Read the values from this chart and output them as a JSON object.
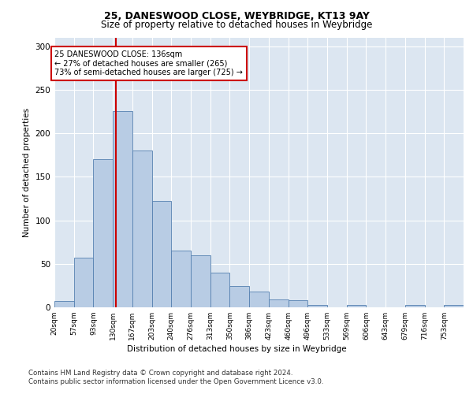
{
  "title1": "25, DANESWOOD CLOSE, WEYBRIDGE, KT13 9AY",
  "title2": "Size of property relative to detached houses in Weybridge",
  "xlabel": "Distribution of detached houses by size in Weybridge",
  "ylabel": "Number of detached properties",
  "bins": [
    "20sqm",
    "57sqm",
    "93sqm",
    "130sqm",
    "167sqm",
    "203sqm",
    "240sqm",
    "276sqm",
    "313sqm",
    "350sqm",
    "386sqm",
    "423sqm",
    "460sqm",
    "496sqm",
    "533sqm",
    "569sqm",
    "606sqm",
    "643sqm",
    "679sqm",
    "716sqm",
    "753sqm"
  ],
  "values": [
    7,
    57,
    170,
    225,
    180,
    122,
    65,
    60,
    40,
    24,
    18,
    9,
    8,
    3,
    0,
    3,
    0,
    0,
    3,
    0,
    3
  ],
  "bar_color": "#b8cce4",
  "bar_edge_color": "#5580b0",
  "vline_color": "#cc0000",
  "vline_bin": 3,
  "annotation_text": "25 DANESWOOD CLOSE: 136sqm\n← 27% of detached houses are smaller (265)\n73% of semi-detached houses are larger (725) →",
  "annotation_box_color": "#ffffff",
  "annotation_box_edge": "#cc0000",
  "ylim": [
    0,
    310
  ],
  "yticks": [
    0,
    50,
    100,
    150,
    200,
    250,
    300
  ],
  "footer1": "Contains HM Land Registry data © Crown copyright and database right 2024.",
  "footer2": "Contains public sector information licensed under the Open Government Licence v3.0.",
  "bg_color": "#dce6f1",
  "grid_color": "#ffffff",
  "title1_fontsize": 9,
  "title2_fontsize": 8.5
}
